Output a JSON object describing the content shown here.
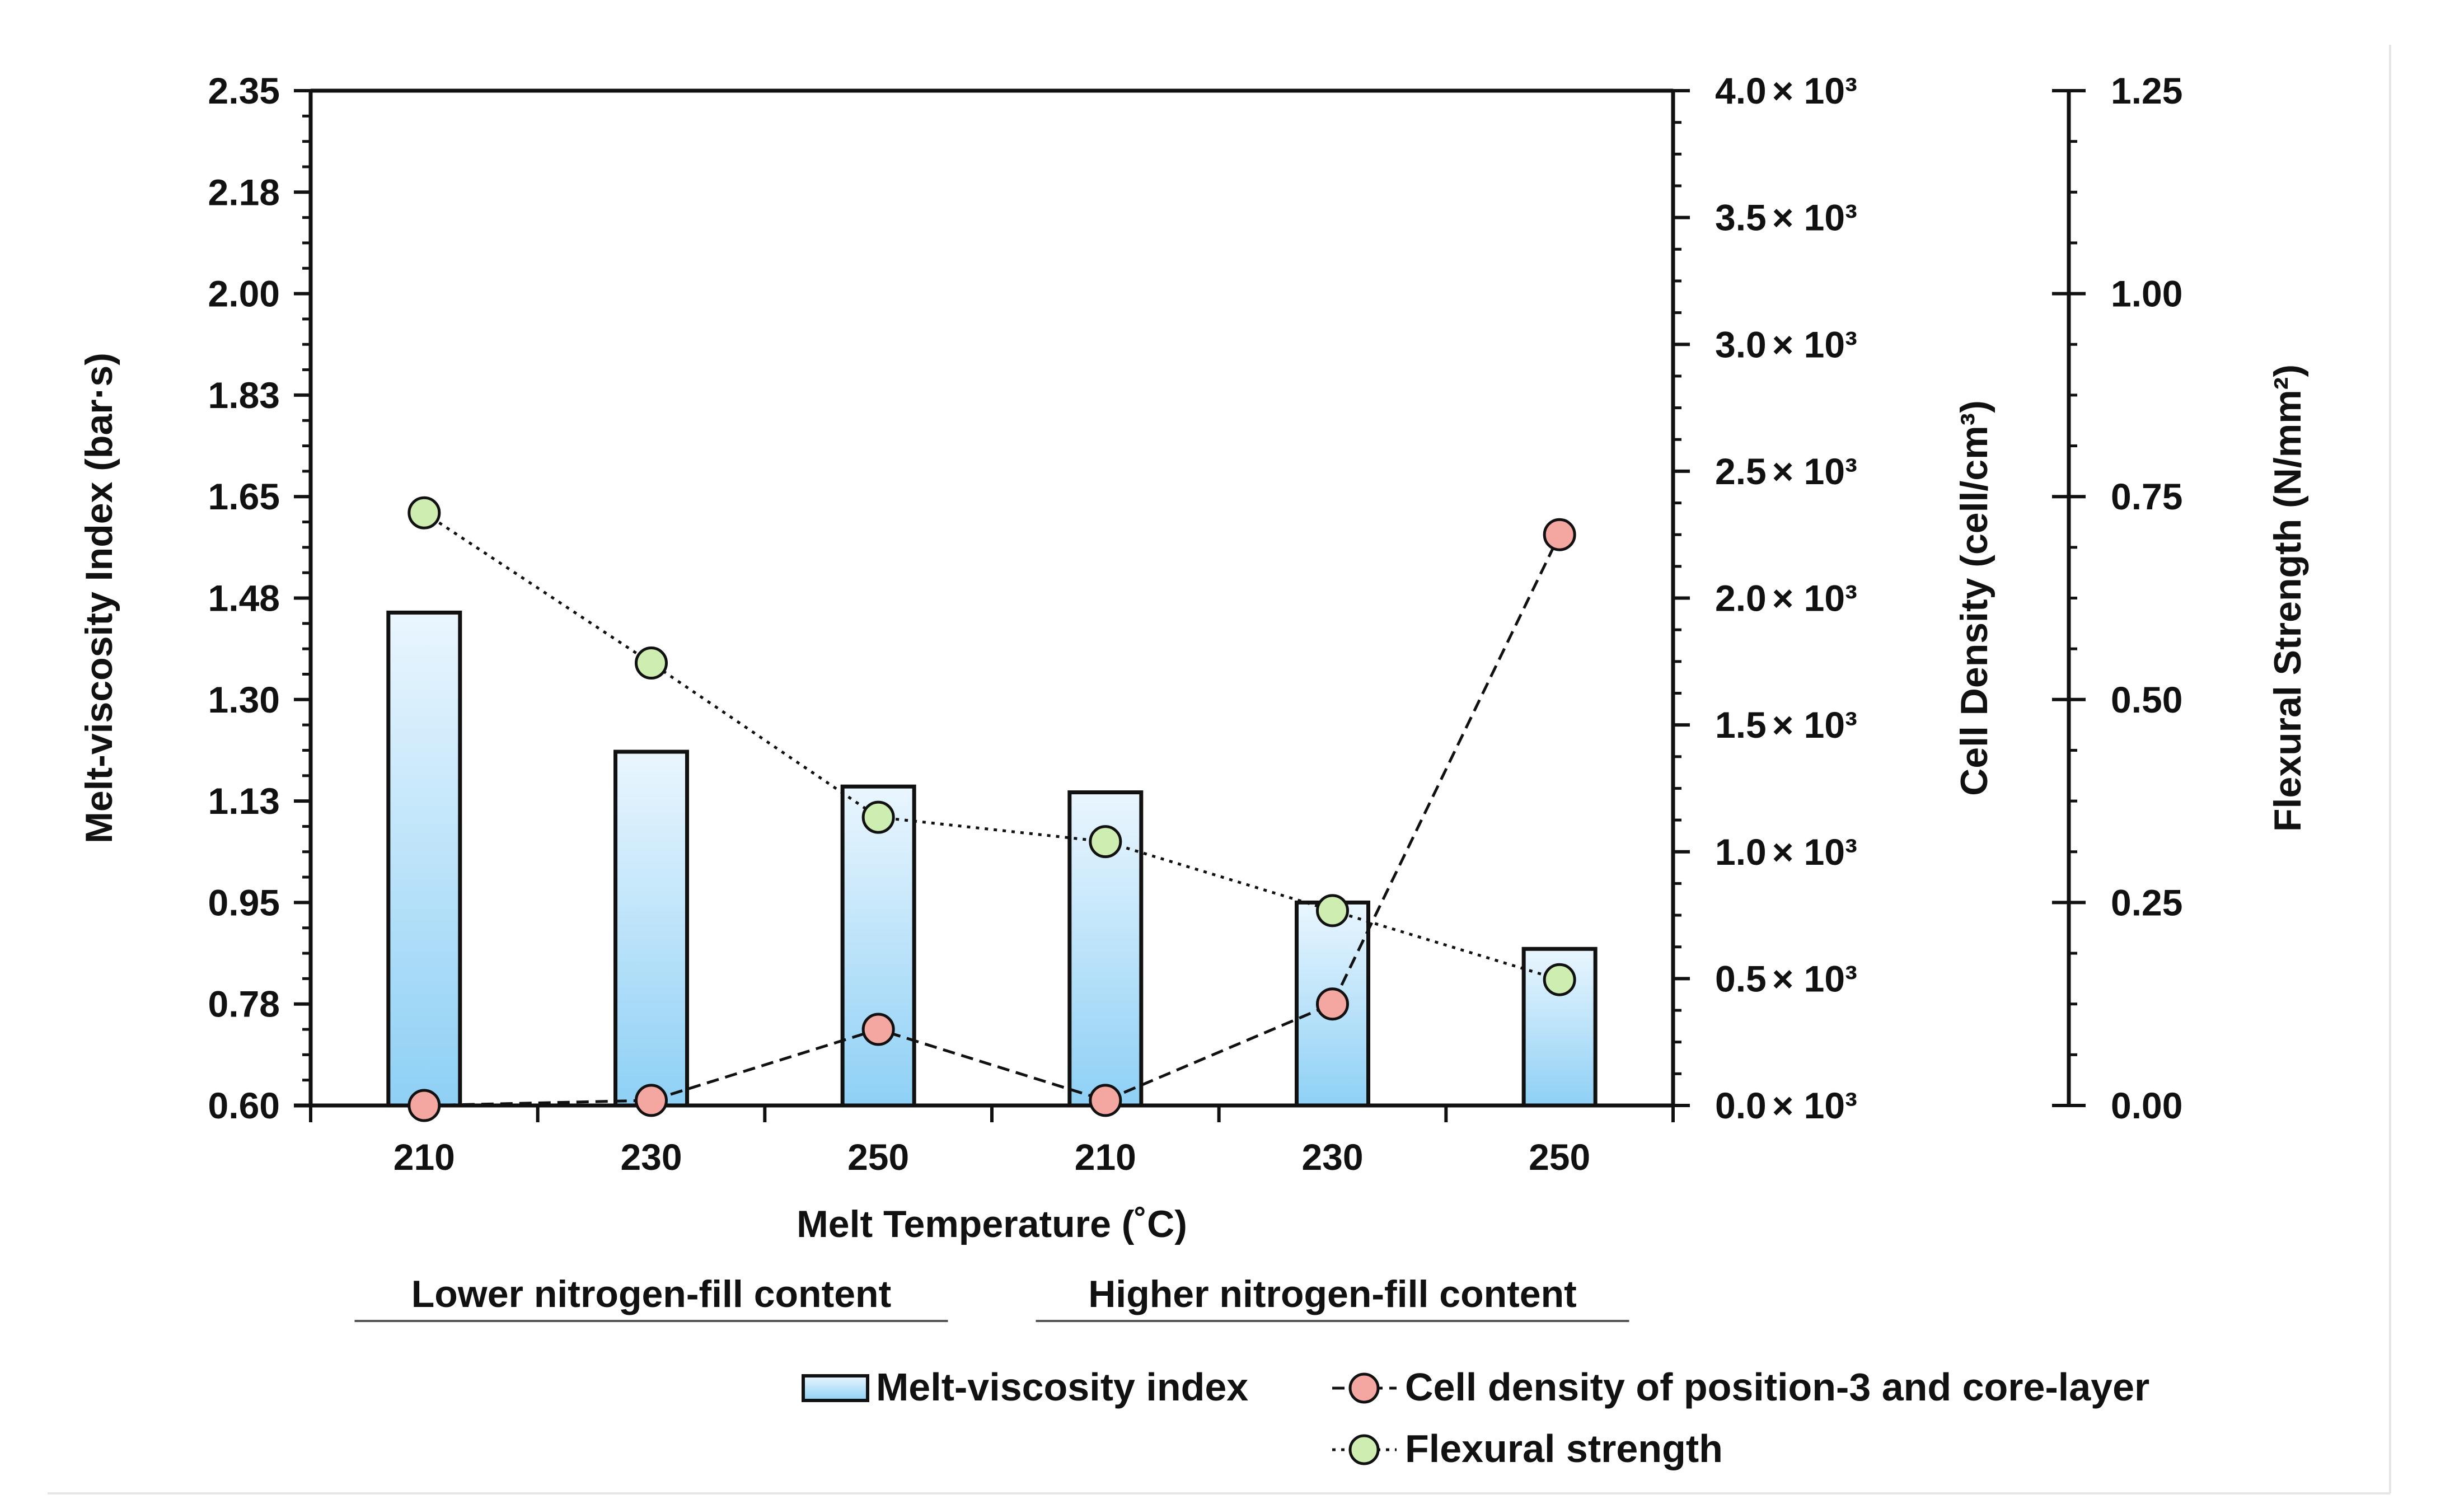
{
  "chart_data": {
    "type": "bar",
    "xlabel": "Melt Temperature (˚C)",
    "categories": [
      "210",
      "230",
      "250",
      "210",
      "230",
      "250"
    ],
    "groups": [
      {
        "label": "Lower nitrogen-fill content",
        "categories": [
          0,
          1,
          2
        ]
      },
      {
        "label": "Higher nitrogen-fill content",
        "categories": [
          3,
          4,
          5
        ]
      }
    ],
    "axes": {
      "left": {
        "label": "Melt-viscosity Index (bar·s)",
        "ylim": [
          0.6,
          2.35
        ],
        "tick_labels": [
          "0.60",
          "0.78",
          "0.95",
          "1.13",
          "1.30",
          "1.48",
          "1.65",
          "1.83",
          "2.00",
          "2.18",
          "2.35"
        ]
      },
      "right1": {
        "label": "Cell Density (cell/cm³)",
        "ylim": [
          0,
          4.0
        ],
        "unit_suffix": "× 10³",
        "tick_labels": [
          "0.0",
          "0.5",
          "1.0",
          "1.5",
          "2.0",
          "2.5",
          "3.0",
          "3.5",
          "4.0"
        ]
      },
      "right2": {
        "label": "Flexural Strength (N/mm²)",
        "ylim": [
          0,
          1.25
        ],
        "tick_labels": [
          "0.00",
          "0.25",
          "0.50",
          "0.75",
          "1.00",
          "1.25"
        ]
      }
    },
    "series": [
      {
        "name": "Melt-viscosity index",
        "kind": "bar",
        "axis": "left",
        "color": "#8ed0f5",
        "values": [
          1.45,
          1.21,
          1.15,
          1.14,
          0.95,
          0.87
        ]
      },
      {
        "name": "Cell density of position-3 and core-layer",
        "kind": "line",
        "style": "dashed",
        "axis": "right1",
        "color": "#f4a6a0",
        "values": [
          0.0,
          0.02,
          0.3,
          0.02,
          0.4,
          2.25
        ]
      },
      {
        "name": "Flexural strength",
        "kind": "line",
        "style": "dotted",
        "axis": "right2",
        "color": "#cdeeb0",
        "values": [
          0.73,
          0.545,
          0.355,
          0.325,
          0.24,
          0.155
        ]
      }
    ],
    "legend": {
      "placement": "bottom",
      "items": [
        "Melt-viscosity index",
        "Cell density of position-3 and core-layer",
        "Flexural strength"
      ]
    }
  }
}
